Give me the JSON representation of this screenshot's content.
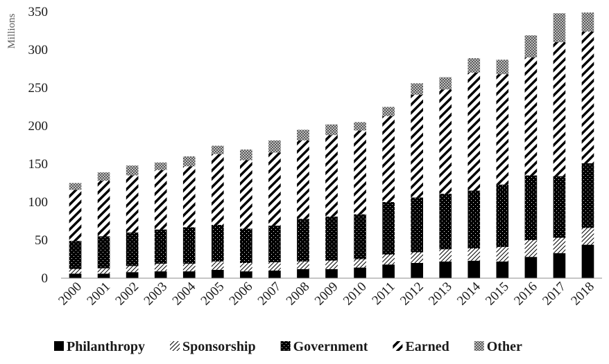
{
  "chart_data": {
    "type": "bar",
    "stacked": true,
    "title": "",
    "xlabel": "",
    "ylabel": "Millions",
    "ylim": [
      0,
      350
    ],
    "yticks": [
      0,
      50,
      100,
      150,
      200,
      250,
      300,
      350
    ],
    "grid": false,
    "legend_position": "bottom",
    "categories": [
      "2000",
      "2001",
      "2002",
      "2003",
      "2004",
      "2005",
      "2006",
      "2007",
      "2008",
      "2009",
      "2010",
      "2011",
      "2012",
      "2013",
      "2014",
      "2015",
      "2016",
      "2017",
      "2018"
    ],
    "series": [
      {
        "name": "Philanthropy",
        "pattern": "solid",
        "color": "#000000",
        "values": [
          6,
          6,
          8,
          9,
          9,
          11,
          9,
          10,
          12,
          12,
          14,
          18,
          20,
          22,
          23,
          22,
          28,
          33,
          44
        ]
      },
      {
        "name": "Sponsorship",
        "pattern": "light-diagonal",
        "color": "#000000",
        "values": [
          6,
          7,
          8,
          10,
          10,
          11,
          11,
          11,
          10,
          11,
          11,
          13,
          14,
          16,
          16,
          19,
          22,
          20,
          22
        ]
      },
      {
        "name": "Government",
        "pattern": "dotted-dark",
        "color": "#000000",
        "values": [
          37,
          42,
          44,
          45,
          48,
          48,
          45,
          48,
          56,
          58,
          59,
          69,
          72,
          73,
          76,
          82,
          85,
          81,
          85
        ]
      },
      {
        "name": "Earned",
        "pattern": "wide-diagonal",
        "color": "#000000",
        "values": [
          67,
          73,
          75,
          78,
          80,
          93,
          90,
          96,
          103,
          107,
          110,
          113,
          135,
          137,
          155,
          145,
          155,
          176,
          173
        ]
      },
      {
        "name": "Other",
        "pattern": "checker-gray",
        "color": "#7f7f7f",
        "values": [
          9,
          11,
          13,
          10,
          13,
          11,
          14,
          16,
          14,
          14,
          11,
          12,
          15,
          16,
          19,
          19,
          29,
          38,
          25
        ]
      }
    ]
  }
}
